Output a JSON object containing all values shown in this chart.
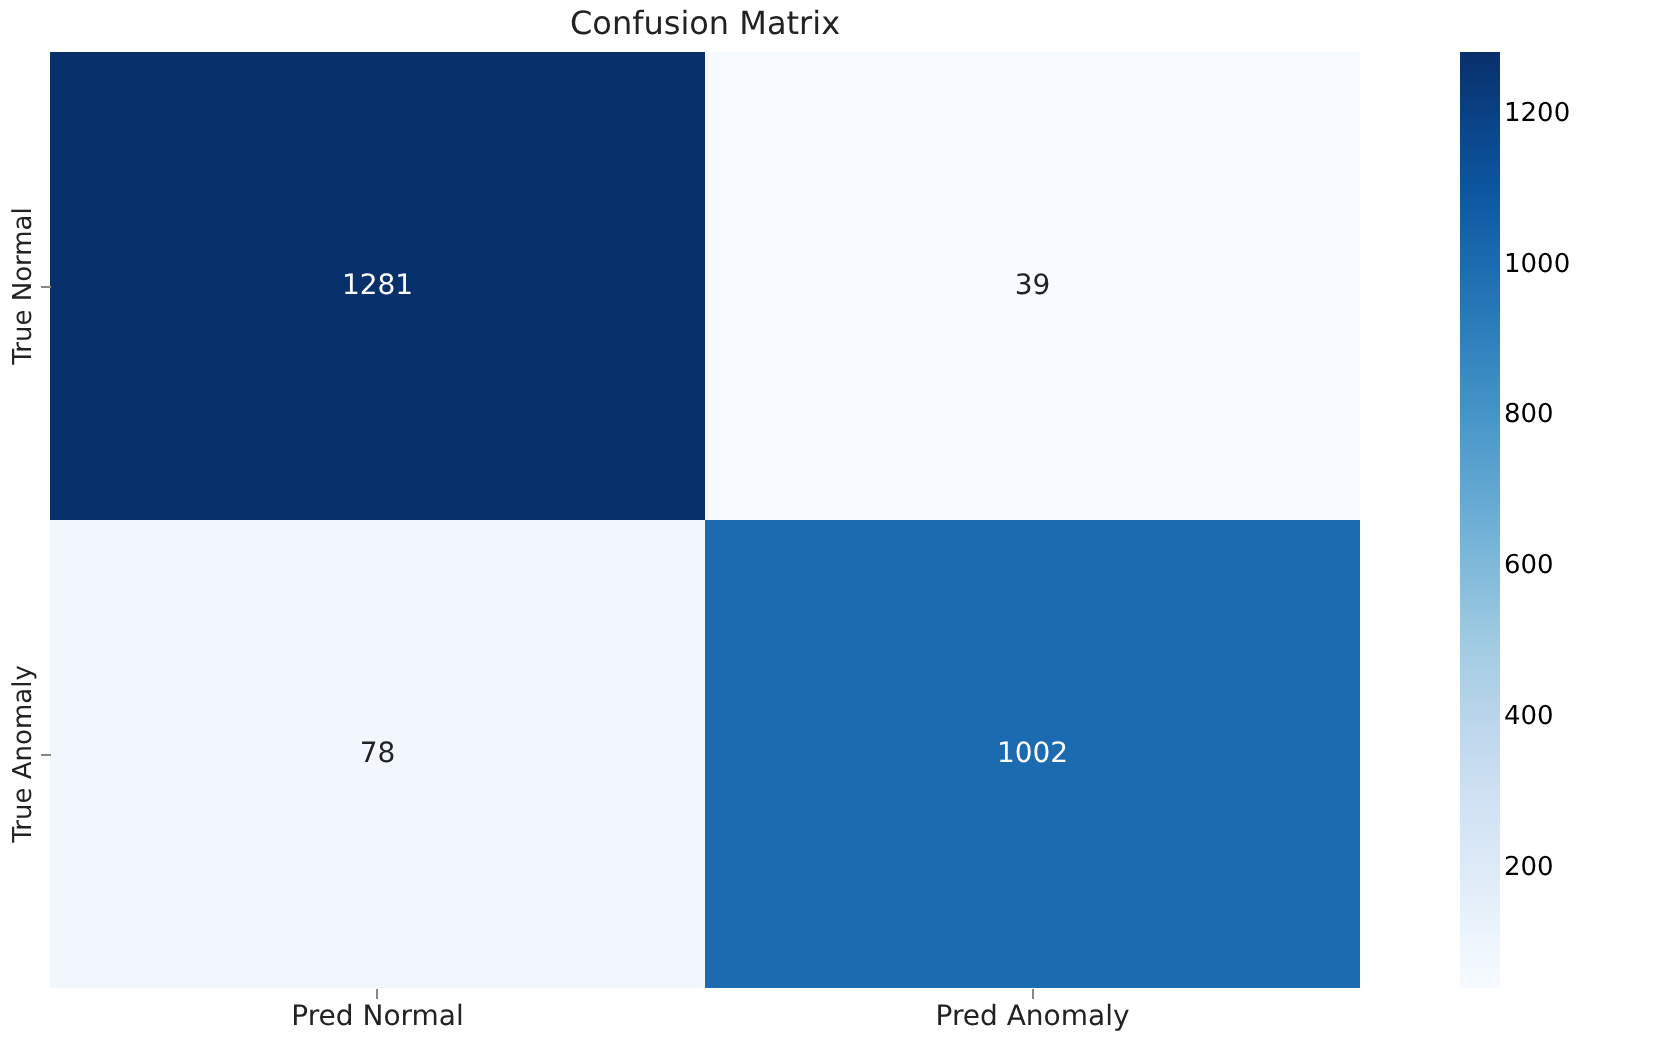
{
  "chart_data": {
    "type": "heatmap",
    "title": "Confusion Matrix",
    "categories": [
      "Pred Normal",
      "Pred Anomaly"
    ],
    "y_categories": [
      "True Normal",
      "True Anomaly"
    ],
    "cells": [
      [
        1281,
        39
      ],
      [
        78,
        1002
      ]
    ],
    "data_labels": true,
    "clim": [
      39,
      1281
    ],
    "cticks": [
      200,
      400,
      600,
      800,
      1000,
      1200
    ]
  }
}
